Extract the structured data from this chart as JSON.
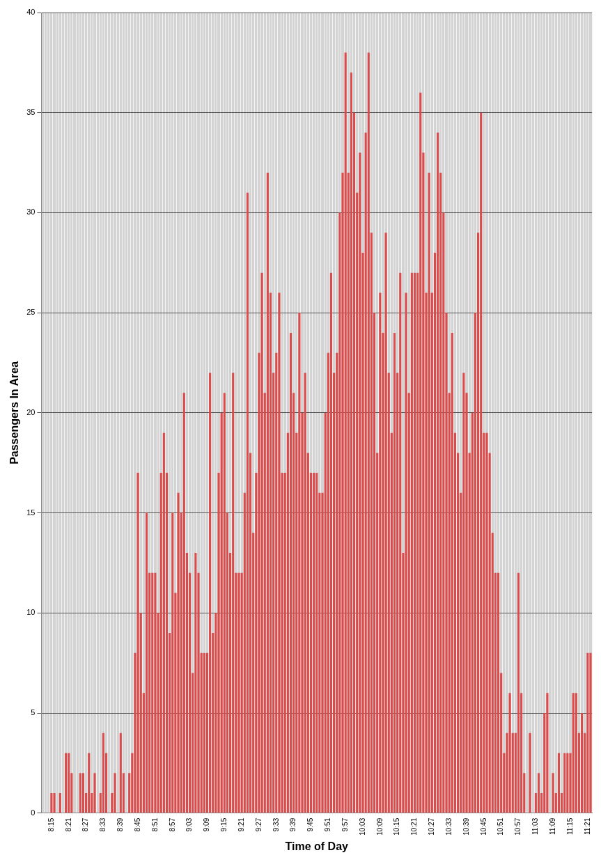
{
  "chart_data": {
    "type": "bar",
    "xlabel": "Time of Day",
    "ylabel": "Passengers In Area",
    "categories": [
      null,
      null,
      null,
      "8:15",
      null,
      null,
      null,
      null,
      null,
      "8:21",
      null,
      null,
      null,
      null,
      null,
      "8:27",
      null,
      null,
      null,
      null,
      null,
      "8:33",
      null,
      null,
      null,
      null,
      null,
      "8:39",
      null,
      null,
      null,
      null,
      null,
      "8:45",
      null,
      null,
      null,
      null,
      null,
      "8:51",
      null,
      null,
      null,
      null,
      null,
      "8:57",
      null,
      null,
      null,
      null,
      null,
      "9:03",
      null,
      null,
      null,
      null,
      null,
      "9:09",
      null,
      null,
      null,
      null,
      null,
      "9:15",
      null,
      null,
      null,
      null,
      null,
      "9:21",
      null,
      null,
      null,
      null,
      null,
      "9:27",
      null,
      null,
      null,
      null,
      null,
      "9:33",
      null,
      null,
      null,
      null,
      null,
      "9:39",
      null,
      null,
      null,
      null,
      null,
      "9:45",
      null,
      null,
      null,
      null,
      null,
      "9:51",
      null,
      null,
      null,
      null,
      null,
      "9:57",
      null,
      null,
      null,
      null,
      null,
      "10:03",
      null,
      null,
      null,
      null,
      null,
      "10:09",
      null,
      null,
      null,
      null,
      null,
      "10:15",
      null,
      null,
      null,
      null,
      null,
      "10:21",
      null,
      null,
      null,
      null,
      null,
      "10:27",
      null,
      null,
      null,
      null,
      null,
      "10:33",
      null,
      null,
      null,
      null,
      null,
      "10:39",
      null,
      null,
      null,
      null,
      null,
      "10:45",
      null,
      null,
      null,
      null,
      null,
      "10:51",
      null,
      null,
      null,
      null,
      null,
      "10:57",
      null,
      null,
      null,
      null,
      null,
      "11:03",
      null,
      null,
      null,
      null,
      null,
      "11:09",
      null,
      null,
      null,
      null,
      null,
      "11:15",
      null,
      null,
      null,
      null,
      null,
      "11:21",
      null
    ],
    "values": [
      0,
      0,
      0,
      1,
      1,
      0,
      1,
      0,
      3,
      3,
      2,
      0,
      0,
      2,
      2,
      1,
      3,
      1,
      2,
      0,
      1,
      4,
      3,
      0,
      1,
      2,
      0,
      4,
      2,
      0,
      2,
      3,
      8,
      17,
      10,
      6,
      15,
      12,
      12,
      12,
      10,
      17,
      19,
      17,
      9,
      15,
      11,
      16,
      15,
      21,
      13,
      12,
      7,
      13,
      12,
      8,
      8,
      8,
      22,
      9,
      10,
      17,
      20,
      21,
      15,
      13,
      22,
      12,
      12,
      12,
      16,
      31,
      18,
      14,
      17,
      23,
      27,
      21,
      32,
      26,
      22,
      23,
      26,
      17,
      17,
      19,
      24,
      21,
      19,
      25,
      20,
      22,
      18,
      17,
      17,
      17,
      16,
      16,
      20,
      23,
      27,
      22,
      23,
      30,
      32,
      38,
      32,
      37,
      35,
      31,
      33,
      28,
      34,
      38,
      29,
      25,
      18,
      26,
      24,
      29,
      22,
      19,
      24,
      22,
      27,
      13,
      26,
      21,
      27,
      27,
      27,
      36,
      33,
      26,
      32,
      26,
      28,
      34,
      32,
      30,
      25,
      21,
      24,
      19,
      18,
      16,
      22,
      21,
      18,
      20,
      25,
      29,
      35,
      19,
      19,
      18,
      14,
      12,
      12,
      7,
      3,
      4,
      6,
      4,
      4,
      12,
      6,
      2,
      0,
      4,
      0,
      1,
      2,
      1,
      5,
      6,
      0,
      2,
      1,
      3,
      1,
      3,
      3,
      3,
      6,
      6,
      4,
      5,
      4,
      8,
      8
    ],
    "color": "#dc4b4b",
    "ylim": [
      0,
      40
    ],
    "yticks": [
      0,
      5,
      10,
      15,
      20,
      25,
      30,
      35,
      40
    ],
    "grid": true
  }
}
